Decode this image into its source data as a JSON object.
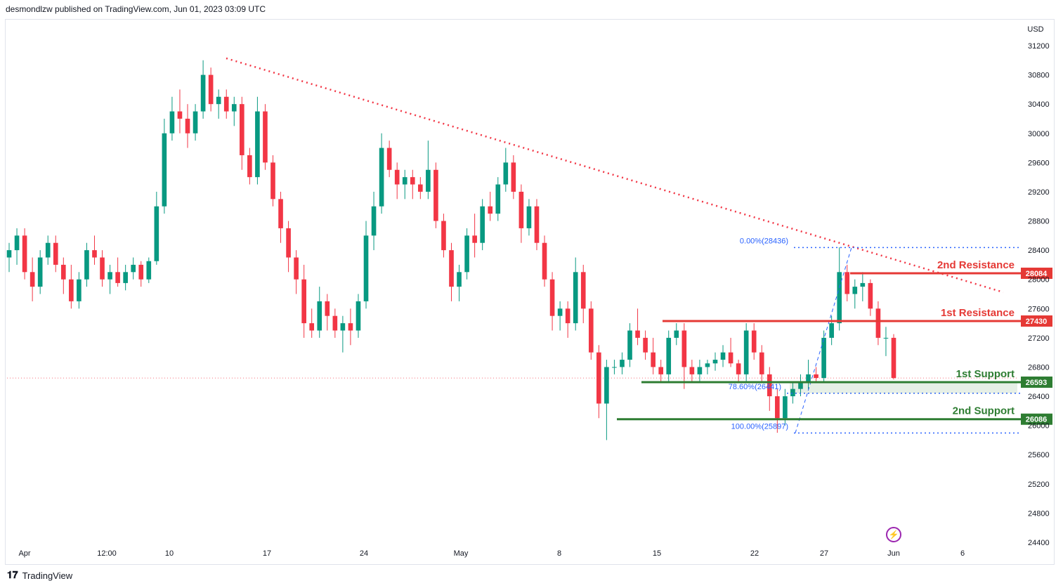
{
  "header": {
    "text": "desmondlzw published on TradingView.com, Jun 01, 2023 03:09 UTC"
  },
  "footer": {
    "brand": "TradingView"
  },
  "chart_data": {
    "type": "candlestick",
    "currency_label": "USD",
    "y_ticks": [
      31200,
      30800,
      30400,
      30000,
      29600,
      29200,
      28800,
      28400,
      28000,
      27600,
      27200,
      26800,
      26400,
      26000,
      25600,
      25200,
      24800,
      24400
    ],
    "x_ticks": [
      "Apr",
      "12:00",
      "10",
      "17",
      "24",
      "May",
      "8",
      "15",
      "22",
      "27",
      "Jun",
      "6"
    ],
    "ylim": [
      24400,
      31200
    ],
    "levels": [
      {
        "label": "2nd Resistance",
        "value": 28084,
        "tag": "28084",
        "color": "#e53935"
      },
      {
        "label": "1st Resistance",
        "value": 27430,
        "tag": "27430",
        "color": "#e53935"
      },
      {
        "label": "1st Support",
        "value": 26593,
        "tag": "26593",
        "color": "#2e7d32"
      },
      {
        "label": "2nd Support",
        "value": 26086,
        "tag": "26086",
        "color": "#2e7d32"
      }
    ],
    "fib_levels": [
      {
        "label": "0.00%(28436)",
        "value": 28436
      },
      {
        "label": "78.60%(26441)",
        "value": 26441
      },
      {
        "label": "100.00%(25897)",
        "value": 25897
      }
    ],
    "current_price": 26650,
    "candles_ohlc": [
      [
        28300,
        28500,
        28100,
        28400
      ],
      [
        28400,
        28700,
        28200,
        28600
      ],
      [
        28600,
        28700,
        28000,
        28100
      ],
      [
        28100,
        28300,
        27700,
        27900
      ],
      [
        27900,
        28400,
        27800,
        28300
      ],
      [
        28300,
        28600,
        28200,
        28500
      ],
      [
        28500,
        28600,
        28100,
        28200
      ],
      [
        28200,
        28300,
        27800,
        28000
      ],
      [
        28000,
        28200,
        27600,
        27700
      ],
      [
        27700,
        28100,
        27600,
        28000
      ],
      [
        28000,
        28500,
        27900,
        28400
      ],
      [
        28400,
        28600,
        28200,
        28300
      ],
      [
        28300,
        28400,
        27900,
        28000
      ],
      [
        28000,
        28200,
        27800,
        28100
      ],
      [
        28100,
        28300,
        27900,
        27950
      ],
      [
        27950,
        28200,
        27850,
        28100
      ],
      [
        28100,
        28300,
        28000,
        28200
      ],
      [
        28200,
        28250,
        27900,
        28000
      ],
      [
        28000,
        28300,
        27950,
        28250
      ],
      [
        28250,
        29200,
        28200,
        29000
      ],
      [
        29000,
        30200,
        28900,
        30000
      ],
      [
        30000,
        30500,
        29900,
        30300
      ],
      [
        30300,
        30600,
        30000,
        30200
      ],
      [
        30200,
        30400,
        29800,
        30000
      ],
      [
        30000,
        30400,
        29900,
        30300
      ],
      [
        30300,
        31000,
        30200,
        30800
      ],
      [
        30800,
        30900,
        30300,
        30400
      ],
      [
        30400,
        30600,
        30200,
        30500
      ],
      [
        30500,
        30600,
        30200,
        30300
      ],
      [
        30300,
        30500,
        30100,
        30400
      ],
      [
        30400,
        30500,
        29500,
        29700
      ],
      [
        29700,
        29800,
        29300,
        29400
      ],
      [
        29400,
        30500,
        29300,
        30300
      ],
      [
        30300,
        30400,
        29500,
        29600
      ],
      [
        29600,
        29700,
        29000,
        29100
      ],
      [
        29100,
        29200,
        28500,
        28700
      ],
      [
        28700,
        28800,
        28100,
        28300
      ],
      [
        28300,
        28400,
        27800,
        28000
      ],
      [
        28000,
        28200,
        27200,
        27400
      ],
      [
        27400,
        27600,
        27200,
        27300
      ],
      [
        27300,
        27900,
        27200,
        27700
      ],
      [
        27700,
        27800,
        27300,
        27500
      ],
      [
        27500,
        27600,
        27200,
        27300
      ],
      [
        27300,
        27500,
        27000,
        27400
      ],
      [
        27400,
        27600,
        27100,
        27300
      ],
      [
        27300,
        27800,
        27200,
        27700
      ],
      [
        27700,
        28800,
        27600,
        28600
      ],
      [
        28600,
        29200,
        28400,
        29000
      ],
      [
        29000,
        30000,
        28900,
        29800
      ],
      [
        29800,
        29900,
        29400,
        29500
      ],
      [
        29500,
        29600,
        29100,
        29300
      ],
      [
        29300,
        29500,
        29100,
        29400
      ],
      [
        29400,
        29500,
        29100,
        29300
      ],
      [
        29300,
        29400,
        29100,
        29200
      ],
      [
        29200,
        29900,
        29100,
        29500
      ],
      [
        29500,
        29600,
        28700,
        28800
      ],
      [
        28800,
        28900,
        28300,
        28400
      ],
      [
        28400,
        28500,
        27700,
        27900
      ],
      [
        27900,
        28200,
        27700,
        28100
      ],
      [
        28100,
        28700,
        28000,
        28600
      ],
      [
        28600,
        28900,
        28300,
        28500
      ],
      [
        28500,
        29100,
        28400,
        29000
      ],
      [
        29000,
        29200,
        28800,
        28900
      ],
      [
        28900,
        29400,
        28800,
        29300
      ],
      [
        29300,
        29800,
        29200,
        29600
      ],
      [
        29600,
        29700,
        29100,
        29200
      ],
      [
        29200,
        29300,
        28500,
        28700
      ],
      [
        28700,
        29100,
        28600,
        29000
      ],
      [
        29000,
        29100,
        28400,
        28500
      ],
      [
        28500,
        28600,
        27900,
        28000
      ],
      [
        28000,
        28100,
        27300,
        27500
      ],
      [
        27500,
        27700,
        27300,
        27600
      ],
      [
        27600,
        27700,
        27200,
        27400
      ],
      [
        27400,
        28300,
        27300,
        28100
      ],
      [
        28100,
        28200,
        27400,
        27600
      ],
      [
        27600,
        27700,
        26900,
        27000
      ],
      [
        27000,
        27100,
        26100,
        26300
      ],
      [
        26300,
        26900,
        25800,
        26800
      ],
      [
        26800,
        26900,
        26700,
        26800
      ],
      [
        26800,
        27000,
        26700,
        26900
      ],
      [
        26900,
        27400,
        26800,
        27300
      ],
      [
        27300,
        27600,
        27100,
        27200
      ],
      [
        27200,
        27300,
        26900,
        27000
      ],
      [
        27000,
        27200,
        26700,
        26800
      ],
      [
        26800,
        26900,
        26600,
        26700
      ],
      [
        26700,
        27300,
        26600,
        27200
      ],
      [
        27200,
        27400,
        27100,
        27300
      ],
      [
        27300,
        27400,
        26500,
        26800
      ],
      [
        26800,
        26900,
        26600,
        26700
      ],
      [
        26700,
        26900,
        26600,
        26800
      ],
      [
        26800,
        26900,
        26700,
        26850
      ],
      [
        26850,
        27000,
        26750,
        26900
      ],
      [
        26900,
        27100,
        26800,
        27000
      ],
      [
        27000,
        27200,
        26800,
        26850
      ],
      [
        26850,
        26900,
        26600,
        26700
      ],
      [
        26700,
        27400,
        26600,
        27300
      ],
      [
        27300,
        27400,
        26900,
        27000
      ],
      [
        27000,
        27100,
        26600,
        26700
      ],
      [
        26700,
        26800,
        26200,
        26400
      ],
      [
        26400,
        26500,
        25900,
        26100
      ],
      [
        26100,
        26500,
        26000,
        26400
      ],
      [
        26400,
        26600,
        26300,
        26500
      ],
      [
        26500,
        26700,
        26400,
        26600
      ],
      [
        26600,
        26900,
        26500,
        26700
      ],
      [
        26700,
        26800,
        26600,
        26650
      ],
      [
        26650,
        27300,
        26600,
        27200
      ],
      [
        27200,
        27500,
        27100,
        27400
      ],
      [
        27400,
        28440,
        27300,
        28100
      ],
      [
        28100,
        28200,
        27700,
        27800
      ],
      [
        27800,
        28000,
        27600,
        27900
      ],
      [
        27900,
        28100,
        27700,
        27950
      ],
      [
        27950,
        28000,
        27500,
        27600
      ],
      [
        27600,
        27700,
        27100,
        27200
      ],
      [
        27200,
        27350,
        26950,
        27200
      ],
      [
        27200,
        27250,
        26630,
        26650
      ]
    ]
  }
}
